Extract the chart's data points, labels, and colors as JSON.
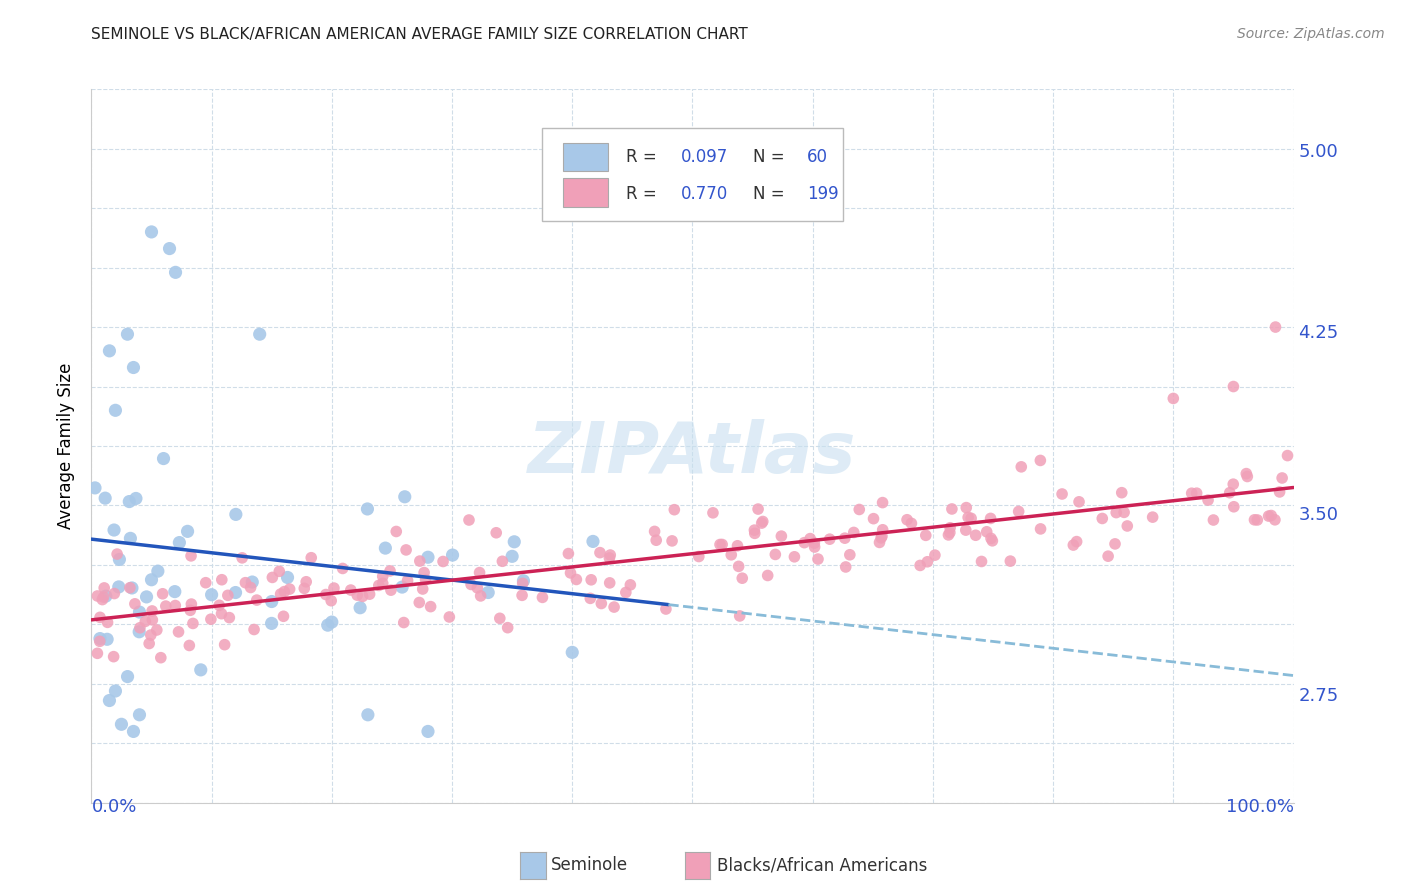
{
  "title": "SEMINOLE VS BLACK/AFRICAN AMERICAN AVERAGE FAMILY SIZE CORRELATION CHART",
  "source": "Source: ZipAtlas.com",
  "ylabel": "Average Family Size",
  "right_yticks": [
    2.75,
    3.5,
    4.25,
    5.0
  ],
  "blue_color": "#a8c8e8",
  "pink_color": "#f0a0b8",
  "blue_line_color": "#2255bb",
  "pink_line_color": "#cc2255",
  "dashed_line_color": "#88bbd8",
  "watermark_color": "#c8dff0",
  "axis_label_color": "#3355cc",
  "legend_text_color": "#3355cc",
  "grid_color": "#d0dde8",
  "bg_color": "#ffffff",
  "title_color": "#222222",
  "source_color": "#888888"
}
